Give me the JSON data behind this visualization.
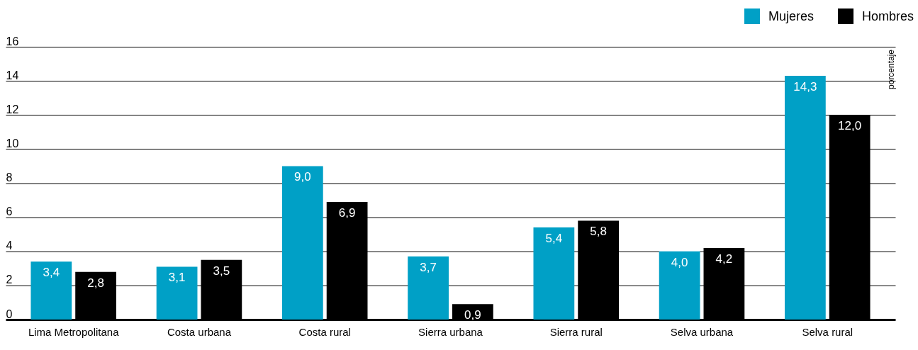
{
  "chart_data": {
    "type": "bar",
    "ylabel": "porcentaje",
    "categories": [
      "Lima Metropolitana",
      "Costa urbana",
      "Costa rural",
      "Sierra urbana",
      "Sierra rural",
      "Selva urbana",
      "Selva rural"
    ],
    "series": [
      {
        "name": "Mujeres",
        "color": "#00a0c6",
        "values": [
          3.4,
          3.1,
          9.0,
          3.7,
          5.4,
          4.0,
          14.3
        ],
        "value_labels": [
          "3,4",
          "3,1",
          "9,0",
          "3,7",
          "5,4",
          "4,0",
          "14,3"
        ]
      },
      {
        "name": "Hombres",
        "color": "#000000",
        "values": [
          2.8,
          3.5,
          6.9,
          0.9,
          5.8,
          4.2,
          12.0
        ],
        "value_labels": [
          "2,8",
          "3,5",
          "6,9",
          "0,9",
          "5,8",
          "4,2",
          "12,0"
        ]
      }
    ],
    "ylim": [
      0,
      16
    ],
    "yticks": [
      0,
      2,
      4,
      6,
      8,
      10,
      12,
      14,
      16
    ],
    "grid": "y",
    "legend": "top right"
  }
}
